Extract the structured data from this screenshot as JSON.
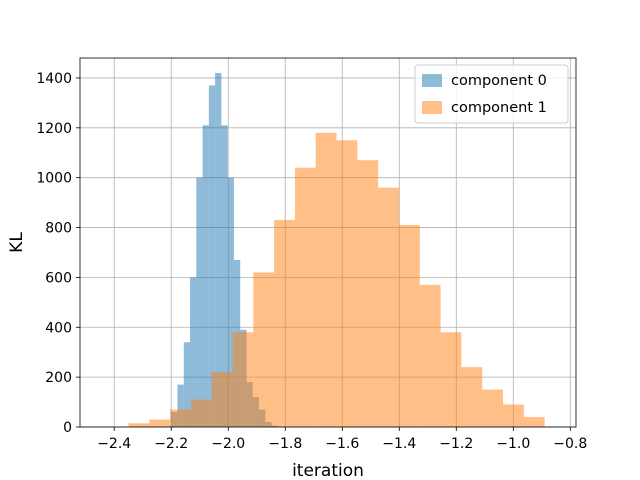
{
  "chart_data": {
    "type": "histogram",
    "xlabel": "iteration",
    "ylabel": "KL",
    "xlim": [
      -2.52,
      -0.78
    ],
    "ylim": [
      0,
      1480
    ],
    "grid": true,
    "legend_position": "top-right",
    "xticks": [
      -2.4,
      -2.2,
      -2.0,
      -1.8,
      -1.6,
      -1.4,
      -1.2,
      -1.0,
      -0.8
    ],
    "xtick_labels": [
      "−2.4",
      "−2.2",
      "−2.0",
      "−1.8",
      "−1.6",
      "−1.4",
      "−1.2",
      "−1.0",
      "−0.8"
    ],
    "yticks": [
      0,
      200,
      400,
      600,
      800,
      1000,
      1200,
      1400
    ],
    "ytick_labels": [
      "0",
      "200",
      "400",
      "600",
      "800",
      "1000",
      "1200",
      "1400"
    ],
    "series": [
      {
        "name": "component 0",
        "color": "#1f77b4",
        "alpha": 0.5,
        "bin_edges": [
          -2.2,
          -2.178,
          -2.156,
          -2.134,
          -2.112,
          -2.09,
          -2.068,
          -2.046,
          -2.024,
          -2.002,
          -1.98,
          -1.958,
          -1.936,
          -1.914,
          -1.892,
          -1.87,
          -1.848,
          -1.826
        ],
        "counts": [
          60,
          170,
          340,
          600,
          1000,
          1210,
          1370,
          1420,
          1210,
          1000,
          670,
          390,
          180,
          120,
          70,
          20,
          5
        ]
      },
      {
        "name": "component 1",
        "color": "#ff7f0e",
        "alpha": 0.5,
        "bin_edges": [
          -2.35,
          -2.277,
          -2.204,
          -2.131,
          -2.058,
          -1.985,
          -1.912,
          -1.839,
          -1.766,
          -1.693,
          -1.62,
          -1.547,
          -1.474,
          -1.401,
          -1.328,
          -1.255,
          -1.182,
          -1.109,
          -1.036,
          -0.963,
          -0.89
        ],
        "counts": [
          15,
          30,
          70,
          110,
          220,
          380,
          620,
          830,
          1040,
          1180,
          1150,
          1070,
          960,
          810,
          570,
          380,
          240,
          150,
          90,
          40
        ]
      }
    ]
  }
}
